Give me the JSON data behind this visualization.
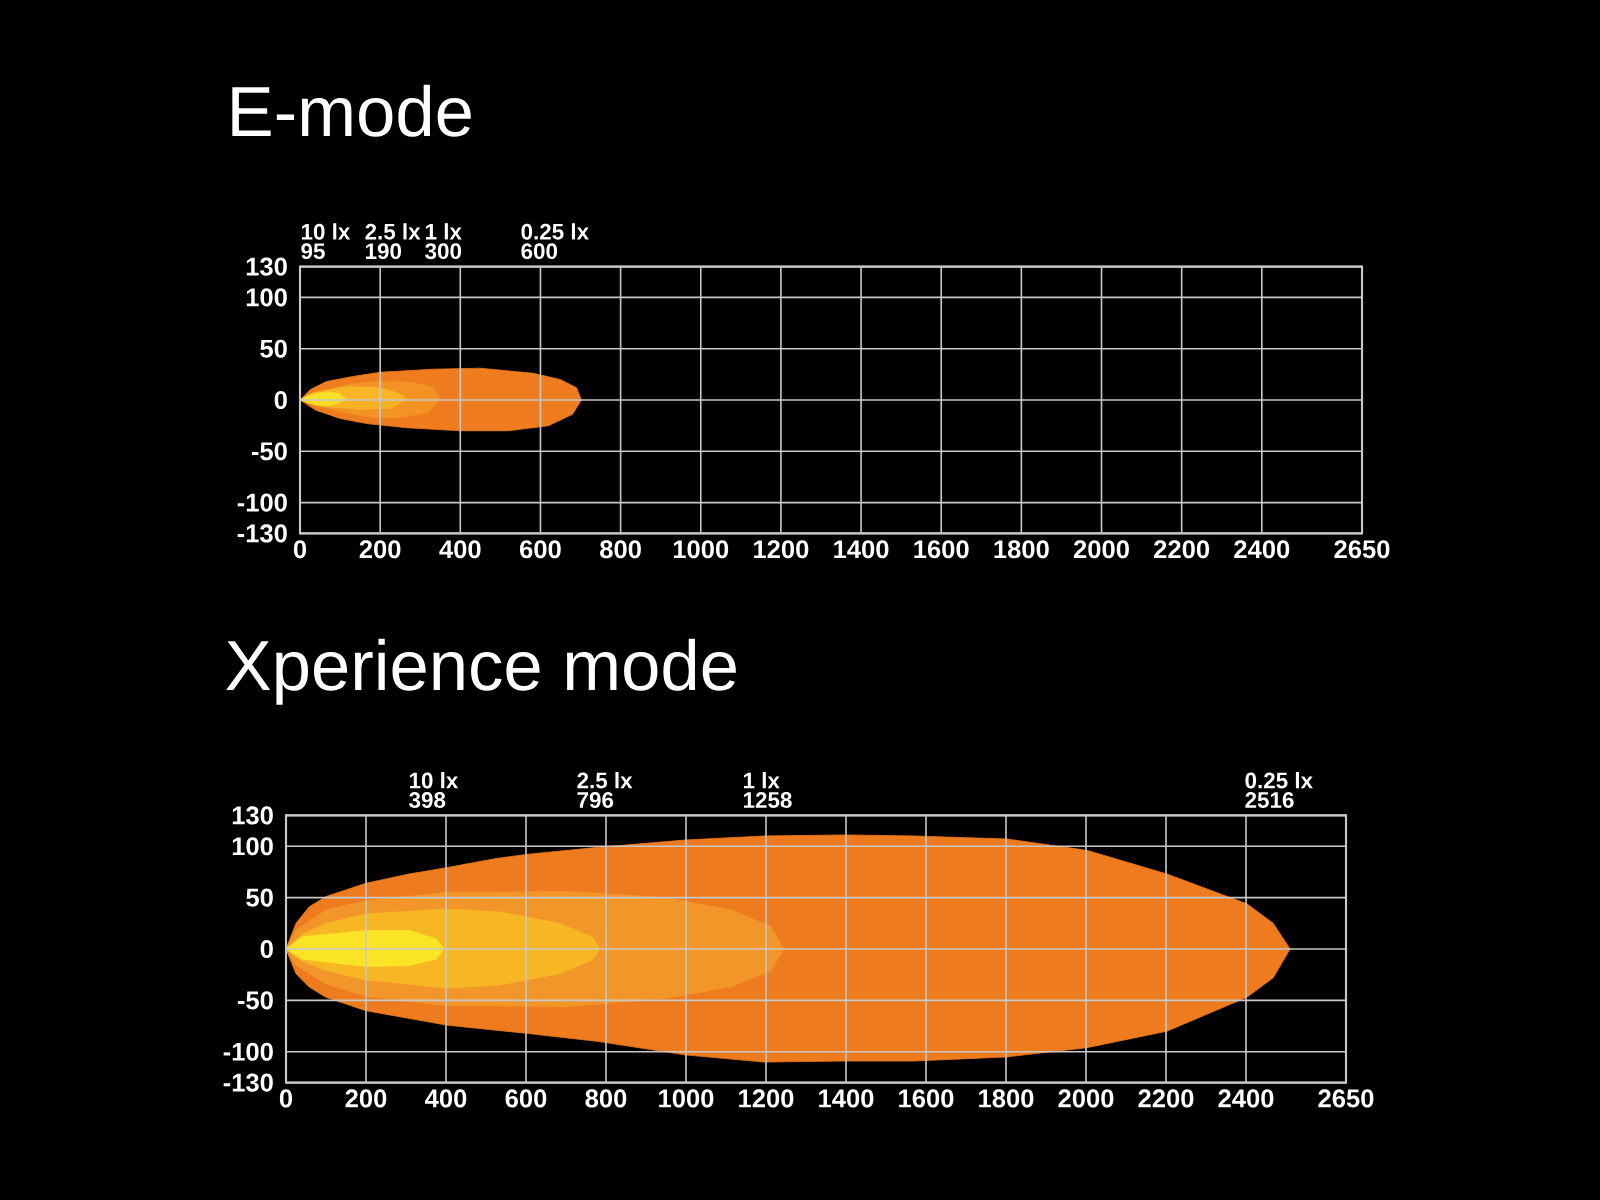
{
  "chart_data": [
    {
      "type": "area",
      "title": "E-mode",
      "xlim": [
        0,
        2650
      ],
      "ylim": [
        -130,
        130
      ],
      "xticks": [
        0,
        200,
        400,
        600,
        800,
        1000,
        1200,
        1400,
        1600,
        1800,
        2000,
        2200,
        2400,
        2650
      ],
      "yticks": [
        -130,
        -100,
        -50,
        0,
        50,
        100,
        130
      ],
      "grid": true,
      "series": [
        {
          "color": "#ef7d1f",
          "x": [
            0,
            25,
            66,
            133,
            200,
            333,
            449,
            582,
            649,
            690,
            702
          ],
          "values": [
            0,
            10,
            18,
            23,
            27,
            30,
            31,
            26,
            20,
            12,
            0
          ]
        },
        {
          "color": "#ef7d1f",
          "x": [
            0,
            40,
            100,
            166,
            266,
            400,
            520,
            620,
            680,
            702
          ],
          "values": [
            0,
            -10,
            -18,
            -23,
            -27,
            -30,
            -30,
            -25,
            -14,
            0
          ]
        },
        {
          "color": "#f29324",
          "x": [
            0,
            66,
            133,
            200,
            283,
            333,
            349
          ],
          "values": [
            0,
            10,
            16,
            18,
            17,
            12,
            0
          ]
        },
        {
          "color": "#f29324",
          "x": [
            0,
            50,
            120,
            180,
            250,
            320,
            349
          ],
          "values": [
            0,
            -6,
            -13,
            -17,
            -17,
            -12,
            0
          ]
        },
        {
          "color": "#f8b626",
          "x": [
            0,
            33,
            116,
            200,
            250,
            266
          ],
          "values": [
            0,
            7,
            13,
            12,
            6,
            0
          ]
        },
        {
          "color": "#f7b223",
          "x": [
            0,
            50,
            150,
            225,
            266
          ],
          "values": [
            0,
            -6,
            -9,
            -8,
            0
          ]
        },
        {
          "color": "#fbe02a",
          "x": [
            0,
            25,
            66,
            100,
            116
          ],
          "values": [
            0,
            5,
            8,
            6,
            0
          ]
        },
        {
          "color": "#fadc28",
          "x": [
            0,
            40,
            80,
            116
          ],
          "values": [
            0,
            -5,
            -5,
            0
          ]
        }
      ],
      "annotations": [
        "10 lx",
        "95",
        "2.5 lx",
        "190",
        "1 lx",
        "300",
        "0.25 lx",
        "600"
      ]
    },
    {
      "type": "area",
      "title": "Xperience mode",
      "xlim": [
        0,
        2650
      ],
      "ylim": [
        -130,
        130
      ],
      "xticks": [
        0,
        200,
        400,
        600,
        800,
        1000,
        1200,
        1400,
        1600,
        1800,
        2000,
        2200,
        2400,
        2650
      ],
      "yticks": [
        -130,
        -100,
        -50,
        0,
        50,
        100,
        130
      ],
      "grid": true,
      "series": [
        {
          "color": "#ee7b1d",
          "x": [
            0,
            25,
            58,
            100,
            200,
            308,
            400,
            525,
            600,
            782,
            997,
            1195,
            1400,
            1570,
            1802,
            2002,
            2202,
            2402,
            2468,
            2510
          ],
          "values": [
            0,
            25,
            41,
            51,
            64,
            73,
            79,
            88,
            92,
            99,
            106,
            110,
            111,
            110,
            107,
            96,
            73,
            44,
            25,
            0
          ]
        },
        {
          "color": "#ee7b1d",
          "x": [
            0,
            25,
            58,
            100,
            200,
            400,
            600,
            782,
            997,
            1195,
            1400,
            1570,
            1802,
            2002,
            2202,
            2402,
            2468,
            2510
          ],
          "values": [
            0,
            -24,
            -37,
            -47,
            -60,
            -74,
            -82,
            -90,
            -103,
            -110,
            -109,
            -109,
            -105,
            -96,
            -80,
            -47,
            -28,
            0
          ]
        },
        {
          "color": "#f3962a",
          "x": [
            0,
            25,
            100,
            200,
            400,
            699,
            947,
            1112,
            1212,
            1245
          ],
          "values": [
            0,
            18,
            38,
            47,
            55,
            56,
            50,
            38,
            22,
            0
          ]
        },
        {
          "color": "#f3962a",
          "x": [
            0,
            25,
            100,
            200,
            400,
            699,
            947,
            1112,
            1212,
            1245
          ],
          "values": [
            0,
            -16,
            -34,
            -46,
            -55,
            -56,
            -48,
            -37,
            -21,
            0
          ]
        },
        {
          "color": "#f7b624",
          "x": [
            0,
            40,
            100,
            200,
            400,
            534,
            683,
            765,
            785
          ],
          "values": [
            0,
            14,
            25,
            34,
            39,
            36,
            25,
            12,
            0
          ]
        },
        {
          "color": "#f7b624",
          "x": [
            0,
            40,
            100,
            200,
            400,
            534,
            683,
            765,
            785
          ],
          "values": [
            0,
            -12,
            -21,
            -30,
            -38,
            -35,
            -24,
            -11,
            0
          ]
        },
        {
          "color": "#fbe426",
          "x": [
            0,
            42,
            200,
            308,
            375,
            395
          ],
          "values": [
            0,
            12,
            18,
            18,
            10,
            0
          ]
        },
        {
          "color": "#fbe426",
          "x": [
            0,
            42,
            200,
            308,
            375,
            395
          ],
          "values": [
            0,
            -10,
            -17,
            -16,
            -10,
            0
          ]
        }
      ],
      "annotations": [
        "10 lx",
        "398",
        "2.5 lx",
        "796",
        "1 lx",
        "1258",
        "0.25 lx",
        "2516"
      ]
    }
  ]
}
